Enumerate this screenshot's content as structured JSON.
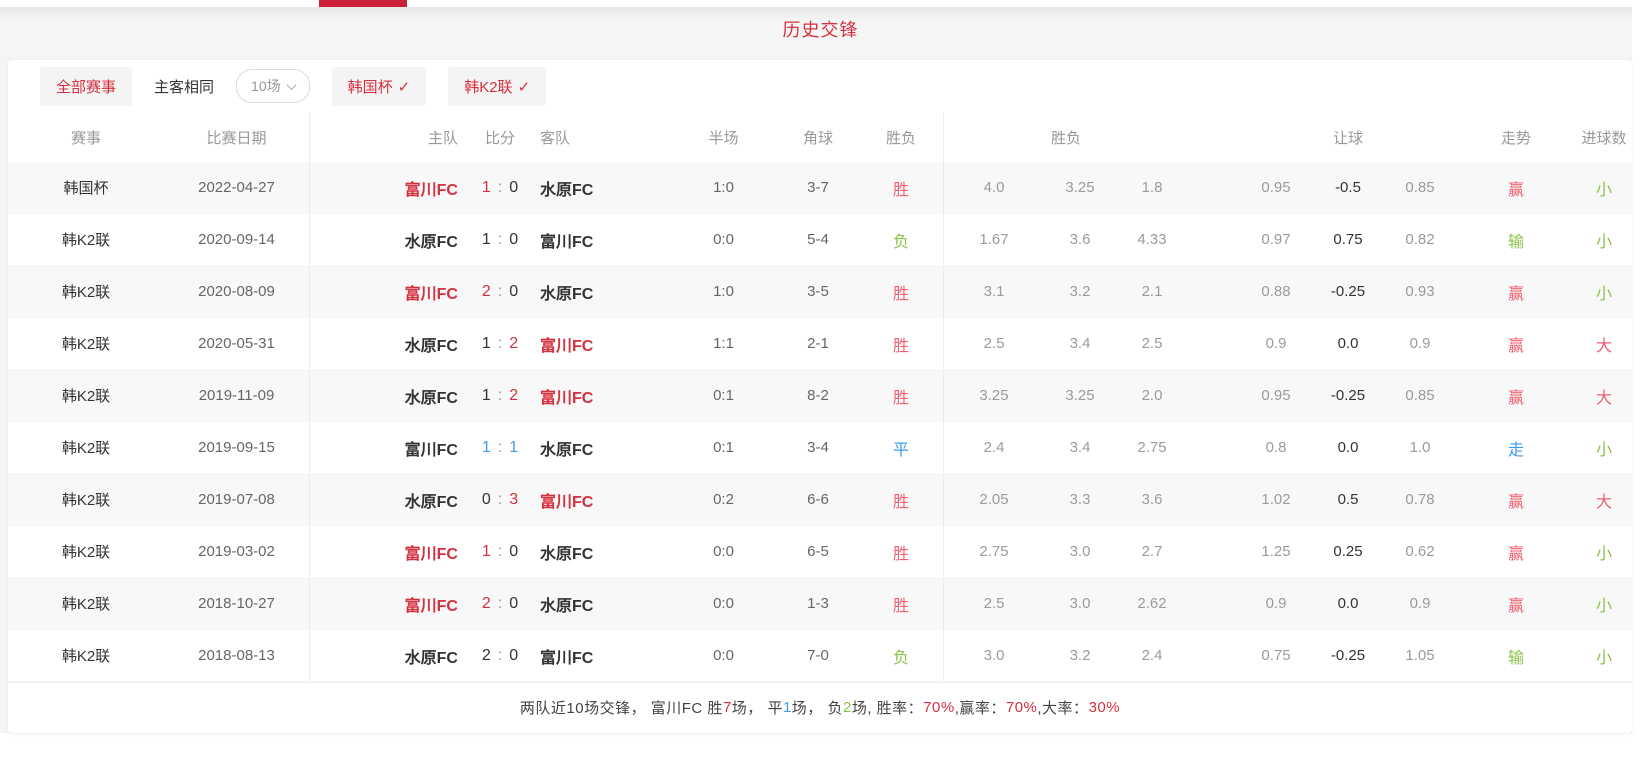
{
  "page": {
    "title": "历史交锋"
  },
  "filters": {
    "all_events": "全部赛事",
    "home_away_same": "主客相同",
    "match_count": "10场",
    "cup_filters": [
      {
        "label": "韩国杯"
      },
      {
        "label": "韩K2联"
      }
    ],
    "check_glyph": "✓"
  },
  "table": {
    "headers": {
      "event": "赛事",
      "date": "比赛日期",
      "home": "主队",
      "score": "比分",
      "away": "客队",
      "half": "半场",
      "corner": "角球",
      "result": "胜负",
      "odds_group": "胜负",
      "handicap_group": "让球",
      "trend": "走势",
      "goals": "进球数"
    },
    "rows": [
      {
        "event": "韩国杯",
        "date": "2022-04-27",
        "home": "富川FC",
        "home_color": "red",
        "hg": "1",
        "hg_color": "red",
        "ag": "0",
        "ag_color": "dark",
        "away": "水原FC",
        "away_color": "dark",
        "half": "1:0",
        "corner": "3-7",
        "result": "胜",
        "odds": [
          "4.0",
          "3.25",
          "1.8"
        ],
        "handicap": [
          "0.95",
          "-0.5",
          "0.85"
        ],
        "trend": "赢",
        "goals": "小"
      },
      {
        "event": "韩K2联",
        "date": "2020-09-14",
        "home": "水原FC",
        "home_color": "dark",
        "hg": "1",
        "hg_color": "dark",
        "ag": "0",
        "ag_color": "dark",
        "away": "富川FC",
        "away_color": "dark",
        "half": "0:0",
        "corner": "5-4",
        "result": "负",
        "odds": [
          "1.67",
          "3.6",
          "4.33"
        ],
        "handicap": [
          "0.97",
          "0.75",
          "0.82"
        ],
        "trend": "输",
        "goals": "小"
      },
      {
        "event": "韩K2联",
        "date": "2020-08-09",
        "home": "富川FC",
        "home_color": "red",
        "hg": "2",
        "hg_color": "red",
        "ag": "0",
        "ag_color": "dark",
        "away": "水原FC",
        "away_color": "dark",
        "half": "1:0",
        "corner": "3-5",
        "result": "胜",
        "odds": [
          "3.1",
          "3.2",
          "2.1"
        ],
        "handicap": [
          "0.88",
          "-0.25",
          "0.93"
        ],
        "trend": "赢",
        "goals": "小"
      },
      {
        "event": "韩K2联",
        "date": "2020-05-31",
        "home": "水原FC",
        "home_color": "dark",
        "hg": "1",
        "hg_color": "dark",
        "ag": "2",
        "ag_color": "red",
        "away": "富川FC",
        "away_color": "red",
        "half": "1:1",
        "corner": "2-1",
        "result": "胜",
        "odds": [
          "2.5",
          "3.4",
          "2.5"
        ],
        "handicap": [
          "0.9",
          "0.0",
          "0.9"
        ],
        "trend": "赢",
        "goals": "大"
      },
      {
        "event": "韩K2联",
        "date": "2019-11-09",
        "home": "水原FC",
        "home_color": "dark",
        "hg": "1",
        "hg_color": "dark",
        "ag": "2",
        "ag_color": "red",
        "away": "富川FC",
        "away_color": "red",
        "half": "0:1",
        "corner": "8-2",
        "result": "胜",
        "odds": [
          "3.25",
          "3.25",
          "2.0"
        ],
        "handicap": [
          "0.95",
          "-0.25",
          "0.85"
        ],
        "trend": "赢",
        "goals": "大"
      },
      {
        "event": "韩K2联",
        "date": "2019-09-15",
        "home": "富川FC",
        "home_color": "dark",
        "hg": "1",
        "hg_color": "blue",
        "ag": "1",
        "ag_color": "blue",
        "away": "水原FC",
        "away_color": "dark",
        "half": "0:1",
        "corner": "3-4",
        "result": "平",
        "odds": [
          "2.4",
          "3.4",
          "2.75"
        ],
        "handicap": [
          "0.8",
          "0.0",
          "1.0"
        ],
        "trend": "走",
        "goals": "小"
      },
      {
        "event": "韩K2联",
        "date": "2019-07-08",
        "home": "水原FC",
        "home_color": "dark",
        "hg": "0",
        "hg_color": "dark",
        "ag": "3",
        "ag_color": "red",
        "away": "富川FC",
        "away_color": "red",
        "half": "0:2",
        "corner": "6-6",
        "result": "胜",
        "odds": [
          "2.05",
          "3.3",
          "3.6"
        ],
        "handicap": [
          "1.02",
          "0.5",
          "0.78"
        ],
        "trend": "赢",
        "goals": "大"
      },
      {
        "event": "韩K2联",
        "date": "2019-03-02",
        "home": "富川FC",
        "home_color": "red",
        "hg": "1",
        "hg_color": "red",
        "ag": "0",
        "ag_color": "dark",
        "away": "水原FC",
        "away_color": "dark",
        "half": "0:0",
        "corner": "6-5",
        "result": "胜",
        "odds": [
          "2.75",
          "3.0",
          "2.7"
        ],
        "handicap": [
          "1.25",
          "0.25",
          "0.62"
        ],
        "trend": "赢",
        "goals": "小"
      },
      {
        "event": "韩K2联",
        "date": "2018-10-27",
        "home": "富川FC",
        "home_color": "red",
        "hg": "2",
        "hg_color": "red",
        "ag": "0",
        "ag_color": "dark",
        "away": "水原FC",
        "away_color": "dark",
        "half": "0:0",
        "corner": "1-3",
        "result": "胜",
        "odds": [
          "2.5",
          "3.0",
          "2.62"
        ],
        "handicap": [
          "0.9",
          "0.0",
          "0.9"
        ],
        "trend": "赢",
        "goals": "小"
      },
      {
        "event": "韩K2联",
        "date": "2018-08-13",
        "home": "水原FC",
        "home_color": "dark",
        "hg": "2",
        "hg_color": "dark",
        "ag": "0",
        "ag_color": "dark",
        "away": "富川FC",
        "away_color": "dark",
        "half": "0:0",
        "corner": "7-0",
        "result": "负",
        "odds": [
          "3.0",
          "3.2",
          "2.4"
        ],
        "handicap": [
          "0.75",
          "-0.25",
          "1.05"
        ],
        "trend": "输",
        "goals": "小"
      }
    ]
  },
  "summary": {
    "segments": [
      {
        "text": "两队近10场交锋，  富川FC 胜 ",
        "color": "dark"
      },
      {
        "text": "7",
        "color": "red"
      },
      {
        "text": " 场，  平 ",
        "color": "dark"
      },
      {
        "text": "1",
        "color": "blue"
      },
      {
        "text": " 场，  负 ",
        "color": "dark"
      },
      {
        "text": "2",
        "color": "green"
      },
      {
        "text": " 场, 胜率： ",
        "color": "dark"
      },
      {
        "text": "70%",
        "color": "red"
      },
      {
        "text": " ,赢率： ",
        "color": "dark"
      },
      {
        "text": "70%",
        "color": "red"
      },
      {
        "text": " ,大率： ",
        "color": "dark"
      },
      {
        "text": "30%",
        "color": "red"
      }
    ]
  },
  "colors": {
    "accent_red": "#d6303f",
    "light_red": "#ee5f70",
    "green": "#8bc34a",
    "blue": "#3d9cf0",
    "tab_red": "#cb1f3a"
  }
}
